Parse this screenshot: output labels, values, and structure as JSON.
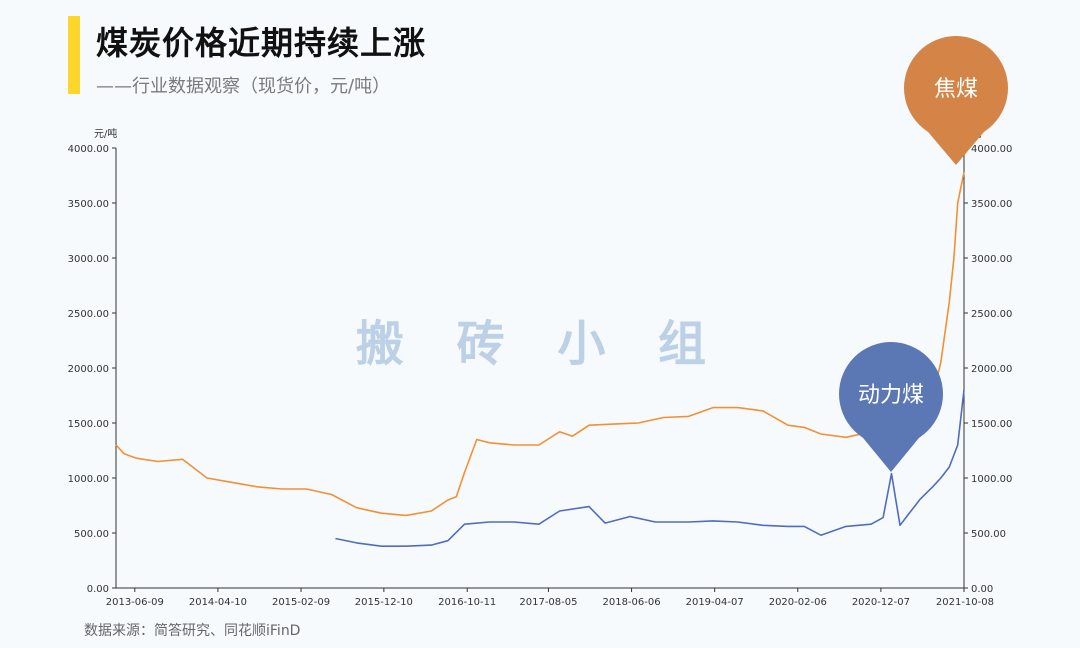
{
  "header": {
    "title": "煤炭价格近期持续上涨",
    "subtitle": "——行业数据观察（现货价，元/吨）"
  },
  "footer": {
    "source": "数据来源：简答研究、同花顺iFinD"
  },
  "watermark": "搬 砖 小 组",
  "callouts": {
    "coking": "焦煤",
    "thermal": "动力煤"
  },
  "colors": {
    "coking": "#f39033",
    "thermal": "#4f6dbf",
    "bubble_coking": "#d38446",
    "bubble_thermal": "#5b78b5",
    "accent": "#fcd62a"
  },
  "chart_data": {
    "type": "line",
    "title": "煤炭价格近期持续上涨",
    "subtitle": "——行业数据观察（现货价，元/吨）",
    "ylabel_left": "元/吨",
    "ylabel_right": "元/吨",
    "ylim": [
      0,
      4000
    ],
    "yticks": [
      "0.00",
      "500.00",
      "1000.00",
      "1500.00",
      "2000.00",
      "2500.00",
      "3000.00",
      "3500.00",
      "4000.00"
    ],
    "xlim": [
      "2013-04-01",
      "2021-10-08"
    ],
    "xticks": [
      "2013-06-09",
      "2014-04-10",
      "2015-02-09",
      "2015-12-10",
      "2016-10-11",
      "2017-08-05",
      "2018-06-06",
      "2019-04-07",
      "2020-02-06",
      "2020-12-07",
      "2021-10-08"
    ],
    "grid": false,
    "series": [
      {
        "name": "焦煤",
        "x": [
          "2013-04-01",
          "2013-05-01",
          "2013-06-15",
          "2013-09-01",
          "2013-12-01",
          "2014-03-01",
          "2014-06-01",
          "2014-09-01",
          "2014-12-01",
          "2015-03-01",
          "2015-06-01",
          "2015-09-01",
          "2015-12-01",
          "2016-03-01",
          "2016-06-01",
          "2016-08-01",
          "2016-09-01",
          "2016-10-01",
          "2016-11-15",
          "2017-01-01",
          "2017-04-01",
          "2017-07-01",
          "2017-09-15",
          "2017-11-01",
          "2018-01-01",
          "2018-04-01",
          "2018-07-01",
          "2018-10-01",
          "2019-01-01",
          "2019-04-01",
          "2019-07-01",
          "2019-10-01",
          "2020-01-01",
          "2020-03-01",
          "2020-05-01",
          "2020-08-01",
          "2020-11-01",
          "2021-01-01",
          "2021-02-01",
          "2021-03-01",
          "2021-05-01",
          "2021-06-15",
          "2021-07-15",
          "2021-08-15",
          "2021-09-01",
          "2021-09-15",
          "2021-10-08"
        ],
        "values": [
          1300,
          1220,
          1180,
          1150,
          1170,
          1000,
          960,
          920,
          900,
          900,
          850,
          730,
          680,
          660,
          700,
          800,
          830,
          1050,
          1350,
          1320,
          1300,
          1300,
          1420,
          1380,
          1480,
          1490,
          1500,
          1550,
          1560,
          1640,
          1640,
          1610,
          1480,
          1460,
          1400,
          1370,
          1420,
          1480,
          1520,
          1540,
          1550,
          1750,
          2050,
          2600,
          3000,
          3500,
          3780
        ]
      },
      {
        "name": "动力煤",
        "x": [
          "2015-06-15",
          "2015-09-01",
          "2015-12-01",
          "2016-03-01",
          "2016-06-01",
          "2016-08-01",
          "2016-10-01",
          "2017-01-01",
          "2017-04-01",
          "2017-07-01",
          "2017-09-15",
          "2018-01-01",
          "2018-03-01",
          "2018-06-01",
          "2018-09-01",
          "2019-01-01",
          "2019-04-01",
          "2019-07-01",
          "2019-10-01",
          "2020-01-01",
          "2020-03-01",
          "2020-05-01",
          "2020-08-01",
          "2020-11-01",
          "2020-12-15",
          "2021-01-15",
          "2021-02-15",
          "2021-03-15",
          "2021-05-01",
          "2021-06-15",
          "2021-07-15",
          "2021-08-15",
          "2021-09-15",
          "2021-10-08"
        ],
        "values": [
          450,
          410,
          380,
          380,
          390,
          430,
          580,
          600,
          600,
          580,
          700,
          740,
          590,
          650,
          600,
          600,
          610,
          600,
          570,
          560,
          560,
          480,
          560,
          580,
          640,
          1040,
          570,
          660,
          810,
          920,
          1000,
          1100,
          1300,
          1800
        ]
      }
    ]
  }
}
